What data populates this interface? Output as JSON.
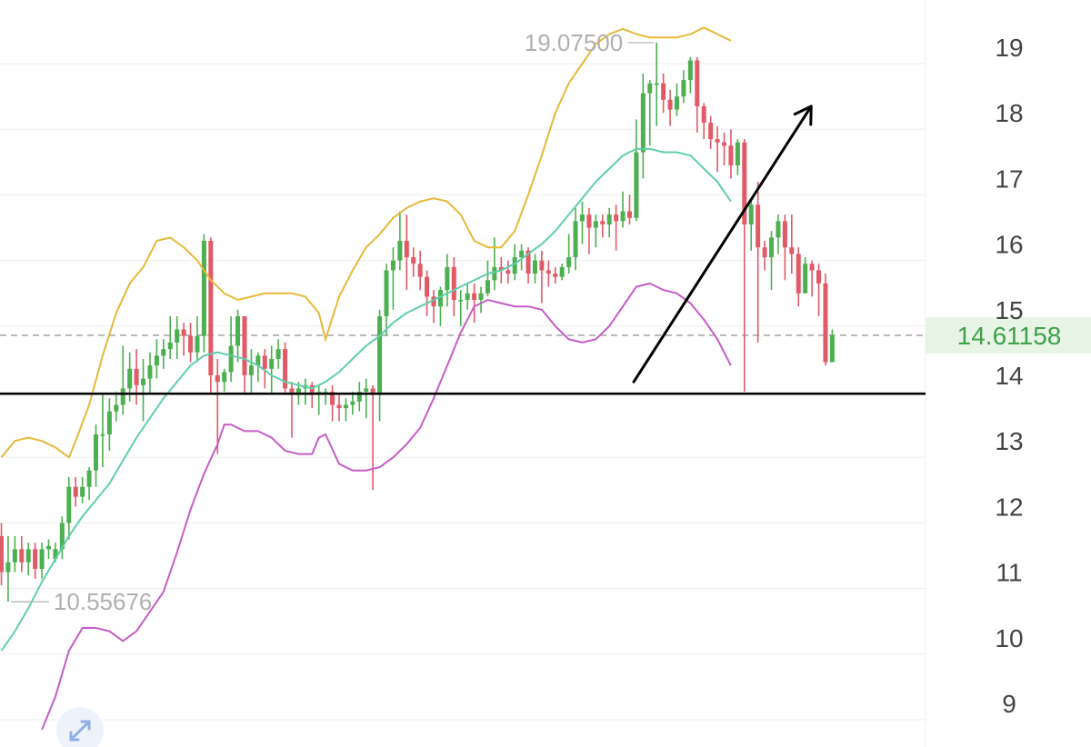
{
  "colors": {
    "up": "#4caf50",
    "down": "#e05a68",
    "upper_band": "#e6b93a",
    "middle_band": "#5fcfa8",
    "lower_band": "#c65cc7",
    "grid": "#eeeeee",
    "support_line": "#000000",
    "arrow": "#000000",
    "last_price_bg": "#e8f5e6",
    "last_price_text": "#3fa14a"
  },
  "chart_data": {
    "type": "candlestick",
    "y_axis": {
      "ticks": [
        9,
        10,
        11,
        12,
        13,
        14,
        15,
        16,
        17,
        18,
        19
      ],
      "range": [
        8.7,
        19.65
      ],
      "position": "right"
    },
    "grid": true,
    "high_label": "19.07500",
    "low_label": "10.55676",
    "last_price_label": "14.61158",
    "last_price": 14.61,
    "support_level": 13.72,
    "annotation_arrow": {
      "from_candle": 92,
      "from_price": 13.9,
      "to_candle": 104,
      "to_price": 18.1
    },
    "candles": [
      [
        11.55,
        11.0,
        11.75,
        10.8
      ],
      [
        11.0,
        11.15,
        11.55,
        10.55
      ],
      [
        11.15,
        11.35,
        11.55,
        11.0
      ],
      [
        11.35,
        11.15,
        11.55,
        11.0
      ],
      [
        11.15,
        11.35,
        11.45,
        10.95
      ],
      [
        11.35,
        11.05,
        11.45,
        10.9
      ],
      [
        11.05,
        11.35,
        11.45,
        10.9
      ],
      [
        11.35,
        11.4,
        11.5,
        11.2
      ],
      [
        11.2,
        11.35,
        11.45,
        11.15
      ],
      [
        11.35,
        11.75,
        11.85,
        11.2
      ],
      [
        11.75,
        12.3,
        12.45,
        11.5
      ],
      [
        12.3,
        12.15,
        12.45,
        12.0
      ],
      [
        12.15,
        12.3,
        12.45,
        12.05
      ],
      [
        12.3,
        12.55,
        12.6,
        12.1
      ],
      [
        12.55,
        13.1,
        13.25,
        12.3
      ],
      [
        13.1,
        13.1,
        13.7,
        12.6
      ],
      [
        13.1,
        13.45,
        13.65,
        12.85
      ],
      [
        13.45,
        13.55,
        13.75,
        13.3
      ],
      [
        13.55,
        13.8,
        14.45,
        13.4
      ],
      [
        13.8,
        14.1,
        14.35,
        13.6
      ],
      [
        14.1,
        13.85,
        14.4,
        13.55
      ],
      [
        13.85,
        13.95,
        14.25,
        13.3
      ],
      [
        13.95,
        14.15,
        14.35,
        13.7
      ],
      [
        14.15,
        14.3,
        14.55,
        13.95
      ],
      [
        14.3,
        14.4,
        14.55,
        14.1
      ],
      [
        14.4,
        14.5,
        14.9,
        14.25
      ],
      [
        14.5,
        14.7,
        14.9,
        14.25
      ],
      [
        14.7,
        14.6,
        14.8,
        14.3
      ],
      [
        14.6,
        14.35,
        14.8,
        14.2
      ],
      [
        14.35,
        14.6,
        14.9,
        14.2
      ],
      [
        14.6,
        16.05,
        16.15,
        14.35
      ],
      [
        16.05,
        14.0,
        16.1,
        13.7
      ],
      [
        14.0,
        13.9,
        14.25,
        12.8
      ],
      [
        13.9,
        14.05,
        14.1,
        13.75
      ],
      [
        14.05,
        14.45,
        14.9,
        13.9
      ],
      [
        14.45,
        14.9,
        15.0,
        14.2
      ],
      [
        14.9,
        14.0,
        14.9,
        13.7
      ],
      [
        14.0,
        14.15,
        14.4,
        13.7
      ],
      [
        14.15,
        14.3,
        14.35,
        13.9
      ],
      [
        14.3,
        14.1,
        14.4,
        13.8
      ],
      [
        14.1,
        14.25,
        14.45,
        13.7
      ],
      [
        14.25,
        14.4,
        14.55,
        14.1
      ],
      [
        14.4,
        13.8,
        14.5,
        13.7
      ],
      [
        13.8,
        13.7,
        13.9,
        13.05
      ],
      [
        13.7,
        13.8,
        13.9,
        13.55
      ],
      [
        13.8,
        13.85,
        13.95,
        13.55
      ],
      [
        13.85,
        13.7,
        13.9,
        13.5
      ],
      [
        13.7,
        13.75,
        13.85,
        13.4
      ],
      [
        13.75,
        13.75,
        13.8,
        13.55
      ],
      [
        13.75,
        13.55,
        13.85,
        13.3
      ],
      [
        13.55,
        13.5,
        13.7,
        13.3
      ],
      [
        13.5,
        13.55,
        13.65,
        13.3
      ],
      [
        13.55,
        13.6,
        13.75,
        13.4
      ],
      [
        13.6,
        13.75,
        13.9,
        13.45
      ],
      [
        13.75,
        13.8,
        13.95,
        13.35
      ],
      [
        13.8,
        13.7,
        13.85,
        12.25
      ],
      [
        13.7,
        14.9,
        15.0,
        13.3
      ],
      [
        14.9,
        15.6,
        15.7,
        14.6
      ],
      [
        15.6,
        15.75,
        15.95,
        15.0
      ],
      [
        15.75,
        16.05,
        16.5,
        15.6
      ],
      [
        16.05,
        15.8,
        16.45,
        15.3
      ],
      [
        15.8,
        15.7,
        15.95,
        15.5
      ],
      [
        15.7,
        15.5,
        15.9,
        15.3
      ],
      [
        15.5,
        15.2,
        15.6,
        14.9
      ],
      [
        15.2,
        15.05,
        15.3,
        14.8
      ],
      [
        15.05,
        15.3,
        15.35,
        14.75
      ],
      [
        15.3,
        15.65,
        15.85,
        15.05
      ],
      [
        15.65,
        15.15,
        15.8,
        14.9
      ],
      [
        15.15,
        15.15,
        15.3,
        14.75
      ],
      [
        15.15,
        15.25,
        15.4,
        15.0
      ],
      [
        15.25,
        15.15,
        15.4,
        14.8
      ],
      [
        15.15,
        15.25,
        15.35,
        14.95
      ],
      [
        15.25,
        15.45,
        15.75,
        15.2
      ],
      [
        15.45,
        15.65,
        16.1,
        15.3
      ],
      [
        15.65,
        15.6,
        15.8,
        15.4
      ],
      [
        15.6,
        15.55,
        15.75,
        15.4
      ],
      [
        15.55,
        15.8,
        16.0,
        15.45
      ],
      [
        15.8,
        15.9,
        16.0,
        15.6
      ],
      [
        15.9,
        15.55,
        15.95,
        15.4
      ],
      [
        15.55,
        15.75,
        15.85,
        15.4
      ],
      [
        15.75,
        15.6,
        15.9,
        15.1
      ],
      [
        15.6,
        15.55,
        15.75,
        15.35
      ],
      [
        15.55,
        15.5,
        15.65,
        15.4
      ],
      [
        15.5,
        15.65,
        15.7,
        15.45
      ],
      [
        15.65,
        15.8,
        16.15,
        15.55
      ],
      [
        15.8,
        16.35,
        16.55,
        15.6
      ],
      [
        16.35,
        16.45,
        16.65,
        16.0
      ],
      [
        16.45,
        16.25,
        16.55,
        15.85
      ],
      [
        16.25,
        16.35,
        16.45,
        15.95
      ],
      [
        16.35,
        16.3,
        16.45,
        16.1
      ],
      [
        16.3,
        16.45,
        16.55,
        16.1
      ],
      [
        16.45,
        16.35,
        16.6,
        15.9
      ],
      [
        16.35,
        16.5,
        16.8,
        16.25
      ],
      [
        16.5,
        16.4,
        16.75,
        16.3
      ],
      [
        16.4,
        17.4,
        17.9,
        16.35
      ],
      [
        17.4,
        18.3,
        18.6,
        17.0
      ],
      [
        18.3,
        18.45,
        18.5,
        17.5
      ],
      [
        18.45,
        18.45,
        19.07,
        17.8
      ],
      [
        18.45,
        18.2,
        18.6,
        18.0
      ],
      [
        18.2,
        18.05,
        18.35,
        17.8
      ],
      [
        18.05,
        18.25,
        18.45,
        17.95
      ],
      [
        18.25,
        18.5,
        18.65,
        18.15
      ],
      [
        18.5,
        18.8,
        18.85,
        18.3
      ],
      [
        18.8,
        18.1,
        18.85,
        17.7
      ],
      [
        18.1,
        17.85,
        18.15,
        17.6
      ],
      [
        17.85,
        17.6,
        17.95,
        17.45
      ],
      [
        17.6,
        17.55,
        17.8,
        17.1
      ],
      [
        17.55,
        17.5,
        17.7,
        17.2
      ],
      [
        17.5,
        17.2,
        17.75,
        17.0
      ],
      [
        17.2,
        17.55,
        17.6,
        17.05
      ],
      [
        17.55,
        16.3,
        17.6,
        13.75
      ],
      [
        16.3,
        16.6,
        16.7,
        15.9
      ],
      [
        16.6,
        15.95,
        16.95,
        14.5
      ],
      [
        15.95,
        15.8,
        16.05,
        15.6
      ],
      [
        15.8,
        16.1,
        16.2,
        15.3
      ],
      [
        16.1,
        16.35,
        16.45,
        15.85
      ],
      [
        16.35,
        15.95,
        16.45,
        15.45
      ],
      [
        15.95,
        15.85,
        16.45,
        15.55
      ],
      [
        15.85,
        15.25,
        15.95,
        15.05
      ],
      [
        15.25,
        15.7,
        15.8,
        15.25
      ],
      [
        15.7,
        15.6,
        15.75,
        15.2
      ],
      [
        15.6,
        15.4,
        15.7,
        14.9
      ],
      [
        15.4,
        14.2,
        15.55,
        14.15
      ],
      [
        14.2,
        14.61,
        14.7,
        14.2
      ]
    ],
    "bollinger": {
      "upper": [
        [
          0,
          12.75
        ],
        [
          2,
          13.0
        ],
        [
          4,
          13.05
        ],
        [
          6,
          13.0
        ],
        [
          8,
          12.9
        ],
        [
          10,
          12.75
        ],
        [
          11,
          13.0
        ],
        [
          13,
          13.55
        ],
        [
          15,
          14.3
        ],
        [
          17,
          14.95
        ],
        [
          19,
          15.4
        ],
        [
          21,
          15.65
        ],
        [
          23,
          16.05
        ],
        [
          25,
          16.1
        ],
        [
          27,
          15.95
        ],
        [
          29,
          15.75
        ],
        [
          31,
          15.45
        ],
        [
          33,
          15.25
        ],
        [
          35,
          15.15
        ],
        [
          37,
          15.2
        ],
        [
          39,
          15.25
        ],
        [
          41,
          15.25
        ],
        [
          43,
          15.25
        ],
        [
          45,
          15.2
        ],
        [
          47,
          14.95
        ],
        [
          48,
          14.55
        ],
        [
          50,
          15.2
        ],
        [
          52,
          15.6
        ],
        [
          54,
          15.95
        ],
        [
          56,
          16.15
        ],
        [
          58,
          16.4
        ],
        [
          60,
          16.55
        ],
        [
          62,
          16.65
        ],
        [
          64,
          16.7
        ],
        [
          66,
          16.65
        ],
        [
          68,
          16.45
        ],
        [
          70,
          16.05
        ],
        [
          72,
          15.95
        ],
        [
          74,
          15.95
        ],
        [
          76,
          16.2
        ],
        [
          78,
          16.75
        ],
        [
          80,
          17.35
        ],
        [
          82,
          18.0
        ],
        [
          84,
          18.45
        ],
        [
          86,
          18.75
        ],
        [
          88,
          19.05
        ],
        [
          90,
          19.2
        ],
        [
          92,
          19.28
        ],
        [
          94,
          19.2
        ],
        [
          96,
          19.15
        ],
        [
          98,
          19.15
        ],
        [
          100,
          19.15
        ],
        [
          102,
          19.2
        ],
        [
          104,
          19.3
        ],
        [
          106,
          19.2
        ],
        [
          108,
          19.1
        ]
      ],
      "middle": [
        [
          0,
          9.8
        ],
        [
          2,
          10.1
        ],
        [
          4,
          10.45
        ],
        [
          6,
          10.85
        ],
        [
          8,
          11.2
        ],
        [
          10,
          11.55
        ],
        [
          12,
          11.85
        ],
        [
          14,
          12.1
        ],
        [
          16,
          12.35
        ],
        [
          18,
          12.7
        ],
        [
          20,
          13.05
        ],
        [
          22,
          13.35
        ],
        [
          24,
          13.65
        ],
        [
          26,
          13.9
        ],
        [
          28,
          14.15
        ],
        [
          30,
          14.3
        ],
        [
          32,
          14.35
        ],
        [
          34,
          14.3
        ],
        [
          36,
          14.25
        ],
        [
          38,
          14.15
        ],
        [
          40,
          14.0
        ],
        [
          42,
          13.9
        ],
        [
          44,
          13.85
        ],
        [
          46,
          13.8
        ],
        [
          47,
          13.85
        ],
        [
          48,
          13.9
        ],
        [
          50,
          14.05
        ],
        [
          52,
          14.25
        ],
        [
          54,
          14.45
        ],
        [
          56,
          14.6
        ],
        [
          58,
          14.8
        ],
        [
          60,
          14.95
        ],
        [
          62,
          15.05
        ],
        [
          64,
          15.15
        ],
        [
          66,
          15.25
        ],
        [
          68,
          15.35
        ],
        [
          70,
          15.45
        ],
        [
          72,
          15.55
        ],
        [
          74,
          15.6
        ],
        [
          76,
          15.7
        ],
        [
          78,
          15.85
        ],
        [
          80,
          16.0
        ],
        [
          82,
          16.2
        ],
        [
          84,
          16.45
        ],
        [
          86,
          16.7
        ],
        [
          88,
          16.95
        ],
        [
          90,
          17.15
        ],
        [
          92,
          17.35
        ],
        [
          94,
          17.45
        ],
        [
          96,
          17.45
        ],
        [
          98,
          17.4
        ],
        [
          100,
          17.4
        ],
        [
          102,
          17.35
        ],
        [
          104,
          17.15
        ],
        [
          106,
          16.95
        ],
        [
          108,
          16.65
        ]
      ],
      "lower": [
        [
          6,
          8.6
        ],
        [
          8,
          9.1
        ],
        [
          10,
          9.8
        ],
        [
          12,
          10.15
        ],
        [
          14,
          10.15
        ],
        [
          16,
          10.1
        ],
        [
          18,
          9.95
        ],
        [
          20,
          10.1
        ],
        [
          22,
          10.4
        ],
        [
          24,
          10.7
        ],
        [
          26,
          11.3
        ],
        [
          28,
          11.95
        ],
        [
          30,
          12.5
        ],
        [
          32,
          12.95
        ],
        [
          33,
          13.25
        ],
        [
          34,
          13.25
        ],
        [
          36,
          13.15
        ],
        [
          38,
          13.15
        ],
        [
          40,
          13.05
        ],
        [
          42,
          12.85
        ],
        [
          44,
          12.8
        ],
        [
          46,
          12.8
        ],
        [
          47,
          13.05
        ],
        [
          48,
          13.1
        ],
        [
          50,
          12.65
        ],
        [
          52,
          12.55
        ],
        [
          54,
          12.55
        ],
        [
          56,
          12.6
        ],
        [
          58,
          12.75
        ],
        [
          60,
          12.95
        ],
        [
          62,
          13.2
        ],
        [
          64,
          13.65
        ],
        [
          66,
          14.15
        ],
        [
          68,
          14.65
        ],
        [
          70,
          15.05
        ],
        [
          72,
          15.15
        ],
        [
          74,
          15.1
        ],
        [
          76,
          15.05
        ],
        [
          78,
          15.05
        ],
        [
          80,
          15.0
        ],
        [
          82,
          14.75
        ],
        [
          84,
          14.55
        ],
        [
          86,
          14.5
        ],
        [
          88,
          14.55
        ],
        [
          90,
          14.75
        ],
        [
          92,
          15.05
        ],
        [
          94,
          15.35
        ],
        [
          96,
          15.4
        ],
        [
          98,
          15.3
        ],
        [
          100,
          15.25
        ],
        [
          102,
          15.1
        ],
        [
          104,
          14.85
        ],
        [
          106,
          14.55
        ],
        [
          108,
          14.15
        ]
      ]
    }
  }
}
